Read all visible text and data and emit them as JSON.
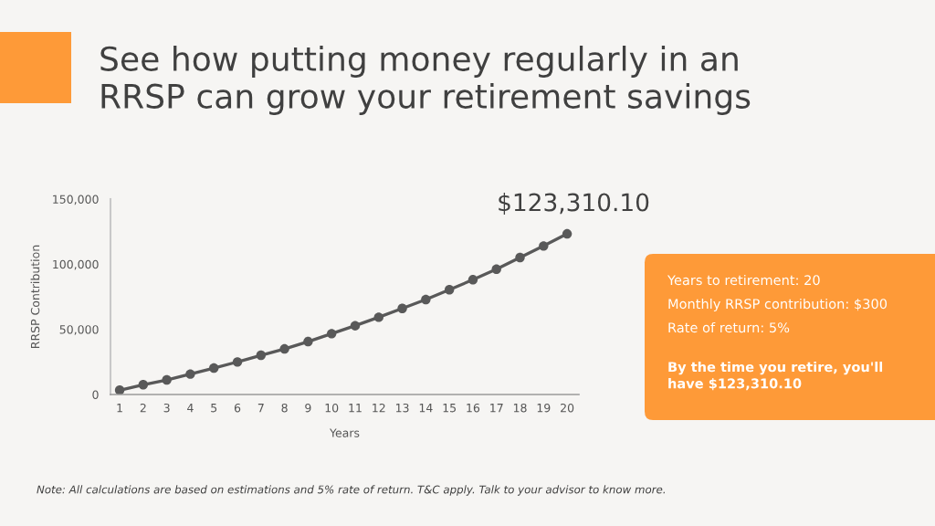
{
  "chart_data": {
    "type": "line",
    "title": "See how putting money regularly in an\nRRSP can grow your retirement savings",
    "xlabel": "Years",
    "ylabel": "RRSP Contribution",
    "categories": [
      "1",
      "2",
      "3",
      "4",
      "5",
      "6",
      "7",
      "8",
      "9",
      "10",
      "11",
      "12",
      "13",
      "14",
      "15",
      "16",
      "17",
      "18",
      "19",
      "20"
    ],
    "series": [
      {
        "color": "#595959",
        "values": [
          3300,
          7500,
          11200,
          15700,
          20300,
          25000,
          30100,
          35000,
          40600,
          46700,
          52800,
          59300,
          66100,
          72900,
          80400,
          88100,
          96200,
          105100,
          114000,
          123310.1
        ],
        "value_labels": [
          null,
          null,
          null,
          null,
          null,
          null,
          null,
          null,
          null,
          null,
          null,
          null,
          null,
          null,
          null,
          null,
          null,
          null,
          null,
          "$123,310.10"
        ]
      }
    ],
    "ylim": [
      0,
      150000
    ],
    "yticks": [
      0,
      {
        "value": 50000,
        "label": "50,000"
      },
      {
        "value": 100000,
        "label": "100,000"
      },
      {
        "value": 150000,
        "label": "150,000"
      }
    ],
    "marker": "circle",
    "line_style": "solid",
    "annotations": [
      "Years to retirement: 20",
      "Monthly RRSP contribution: $300",
      "Rate of return: 5%",
      "By the time you retire, you'll\nhave $123,310.10",
      "Note: All calculations are based on estimations and 5% rate of return. T&C apply. Talk to your advisor to know more."
    ]
  }
}
